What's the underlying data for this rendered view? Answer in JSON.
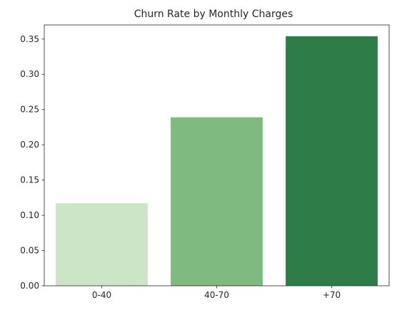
{
  "chart_data": {
    "type": "bar",
    "title": "Churn Rate by Monthly Charges",
    "xlabel": "",
    "ylabel": "",
    "categories": [
      "0-40",
      "40-70",
      "+70"
    ],
    "values": [
      0.117,
      0.239,
      0.354
    ],
    "bar_colors": [
      "#cce5c7",
      "#7fba80",
      "#2e7d49"
    ],
    "ylim": [
      0,
      0.37
    ],
    "yticks": [
      0.0,
      0.05,
      0.1,
      0.15,
      0.2,
      0.25,
      0.3,
      0.35
    ],
    "ytick_labels": [
      "0.00",
      "0.05",
      "0.10",
      "0.15",
      "0.20",
      "0.25",
      "0.30",
      "0.35"
    ],
    "grid": false,
    "legend": "none"
  }
}
